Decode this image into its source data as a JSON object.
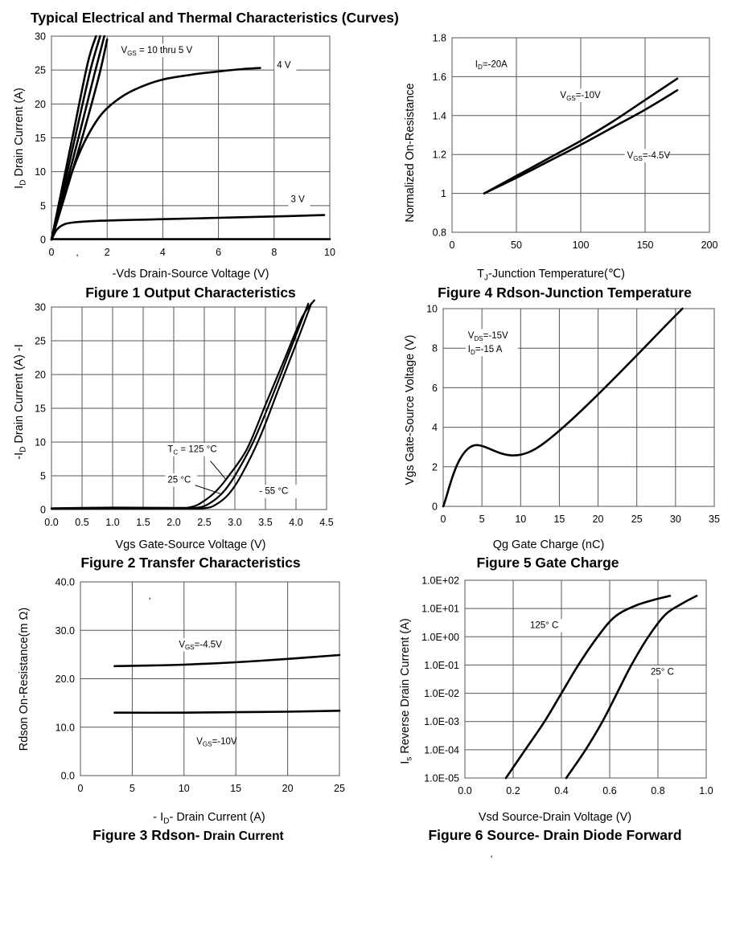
{
  "page": {
    "title": "Typical Electrical and Thermal Characteristics (Curves)",
    "stray_marks": [
      "'",
      "'",
      "'"
    ]
  },
  "chart_data": [
    {
      "id": "fig1",
      "type": "line",
      "caption": "Figure 1 Output Characteristics",
      "xlabel": "-Vds Drain-Source Voltage (V)",
      "ylabel": "I",
      "ylabel_sub": "D",
      "ylabel_text": "Drain Current (A)",
      "xlim": [
        0,
        10
      ],
      "ylim": [
        0,
        30
      ],
      "xticks": [
        0,
        2,
        4,
        6,
        8,
        10
      ],
      "xtick_labels": [
        "0",
        "2",
        "4",
        "6",
        "8",
        "10"
      ],
      "yticks": [
        0,
        5,
        10,
        15,
        20,
        25,
        30
      ],
      "ytick_labels": [
        "0",
        "5",
        "10",
        "15",
        "20",
        "25",
        "30"
      ],
      "grid": true,
      "series": [
        {
          "name": "VGS = 10 thru 5 V (a)",
          "x": [
            0,
            0.3,
            0.8,
            1.3,
            1.6
          ],
          "y": [
            0,
            6,
            16,
            26,
            30
          ]
        },
        {
          "name": "VGS = 10 thru 5 V (b)",
          "x": [
            0,
            0.35,
            0.9,
            1.4,
            1.75
          ],
          "y": [
            0,
            6,
            16,
            25,
            30
          ]
        },
        {
          "name": "VGS = 10 thru 5 V (c)",
          "x": [
            0,
            0.4,
            1.0,
            1.55,
            1.9
          ],
          "y": [
            0,
            6,
            15.5,
            24.5,
            30
          ]
        },
        {
          "name": "VGS = 10 thru 5 V (d)",
          "x": [
            0,
            0.45,
            1.1,
            1.7,
            2.0
          ],
          "y": [
            0,
            6,
            15,
            24,
            29.5
          ]
        },
        {
          "name": "4 V",
          "x": [
            0,
            0.3,
            0.7,
            1.2,
            1.8,
            2.5,
            3.2,
            4,
            5,
            6,
            7,
            7.5
          ],
          "y": [
            0,
            4,
            9.5,
            14.5,
            18.5,
            21,
            22.5,
            23.6,
            24.3,
            24.8,
            25.2,
            25.3
          ]
        },
        {
          "name": "3 V",
          "x": [
            0,
            0.2,
            0.5,
            1,
            2,
            3,
            4,
            6,
            8,
            9.8
          ],
          "y": [
            0,
            1.5,
            2.3,
            2.6,
            2.8,
            2.9,
            3.0,
            3.2,
            3.4,
            3.6
          ]
        },
        {
          "name": "baseline",
          "x": [
            0,
            10
          ],
          "y": [
            0.05,
            0.05
          ]
        }
      ],
      "annotations": [
        {
          "text": "V",
          "sub": "GS",
          "tail": " = 10 thru 5 V",
          "x": 2.5,
          "y": 27.5
        },
        {
          "text": "4 V",
          "x": 8.1,
          "y": 25.3
        },
        {
          "text": "3 V",
          "x": 8.6,
          "y": 5.5
        }
      ]
    },
    {
      "id": "fig2",
      "type": "line",
      "caption": "Figure 2 Transfer Characteristics",
      "xlabel": "Vgs Gate-Source Voltage (V)",
      "ylabel": "-I",
      "ylabel_sub": "D",
      "ylabel_text": "Drain Current (A) -I",
      "xlim": [
        0,
        4.5
      ],
      "ylim": [
        0,
        30
      ],
      "xticks": [
        0,
        0.5,
        1,
        1.5,
        2,
        2.5,
        3,
        3.5,
        4,
        4.5
      ],
      "xtick_labels": [
        "0.0",
        "0.5",
        "1.0",
        "1.5",
        "2.0",
        "2.5",
        "3.0",
        "3.5",
        "4.0",
        "4.5"
      ],
      "yticks": [
        0,
        5,
        10,
        15,
        20,
        25,
        30
      ],
      "ytick_labels": [
        "0",
        "5",
        "10",
        "15",
        "20",
        "25",
        "30"
      ],
      "grid": true,
      "series": [
        {
          "name": "TC = 125 °C",
          "x": [
            0,
            1,
            2,
            2.3,
            2.5,
            2.7,
            2.9,
            3.2,
            3.5,
            3.8,
            4.1,
            4.3
          ],
          "y": [
            0.2,
            0.3,
            0.25,
            0.4,
            1.3,
            2.8,
            5,
            9,
            15.5,
            22,
            28.5,
            31
          ]
        },
        {
          "name": "25 °C",
          "x": [
            0,
            1,
            2,
            2.4,
            2.6,
            2.8,
            3.0,
            3.3,
            3.6,
            3.9,
            4.2
          ],
          "y": [
            0.15,
            0.2,
            0.2,
            0.3,
            1.0,
            2.5,
            5,
            10,
            16.5,
            23.5,
            30.5
          ]
        },
        {
          "name": "- 55 °C",
          "x": [
            0,
            1,
            2,
            2.5,
            2.7,
            2.9,
            3.1,
            3.4,
            3.7,
            4.0,
            4.25
          ],
          "y": [
            0.1,
            0.15,
            0.15,
            0.2,
            0.8,
            2.3,
            5,
            10.5,
            17.5,
            24.5,
            30.5
          ]
        }
      ],
      "annotations": [
        {
          "text": "T",
          "sub": "C",
          "tail": " = 125 °C",
          "x": 1.9,
          "y": 8.5
        },
        {
          "text": "25 °C",
          "x": 1.9,
          "y": 4.0
        },
        {
          "text": "- 55 °C",
          "x": 3.4,
          "y": 2.3
        }
      ]
    },
    {
      "id": "fig3",
      "type": "line",
      "caption": "Figure 3 Rdson- Drain Current",
      "caption_bold": "Figure 3 Rdson-",
      "caption_normal": " Drain Current",
      "xlabel": "- I",
      "xlabel_sub": "D",
      "xlabel_tail": "- Drain Current (A)",
      "ylabel": "Rdson On-Resistance(m Ω)",
      "xlim": [
        0,
        25
      ],
      "ylim": [
        0,
        40
      ],
      "xticks": [
        0,
        5,
        10,
        15,
        20,
        25
      ],
      "xtick_labels": [
        "0",
        "5",
        "10",
        "15",
        "20",
        "25"
      ],
      "yticks": [
        0,
        10,
        20,
        30,
        40
      ],
      "ytick_labels": [
        "0.0",
        "10.0",
        "20.0",
        "30.0",
        "40.0"
      ],
      "grid": true,
      "series": [
        {
          "name": "VGS=-4.5V",
          "x": [
            3.3,
            6,
            10,
            15,
            20,
            25
          ],
          "y": [
            22.6,
            22.7,
            22.9,
            23.4,
            24.1,
            24.9
          ]
        },
        {
          "name": "VGS=-10V",
          "x": [
            3.3,
            10,
            15,
            20,
            25
          ],
          "y": [
            13.0,
            13.0,
            13.1,
            13.2,
            13.4
          ]
        }
      ],
      "annotations": [
        {
          "text": "V",
          "sub": "GS",
          "tail": "=-4.5V",
          "x": 9.5,
          "y": 26.5
        },
        {
          "text": "V",
          "sub": "GS",
          "tail": "=-10V",
          "x": 11.2,
          "y": 6.5
        }
      ]
    },
    {
      "id": "fig4",
      "type": "line",
      "caption": "Figure 4 Rdson-Junction Temperature",
      "xlabel": "T",
      "xlabel_sub": "J",
      "xlabel_tail": "-Junction Temperature(℃)",
      "ylabel": "Normalized On-Resistance",
      "xlim": [
        0,
        200
      ],
      "ylim": [
        0.8,
        1.8
      ],
      "xticks": [
        0,
        50,
        100,
        150,
        200
      ],
      "xtick_labels": [
        "0",
        "50",
        "100",
        "150",
        "200"
      ],
      "yticks": [
        0.8,
        1.0,
        1.2,
        1.4,
        1.6,
        1.8
      ],
      "ytick_labels": [
        "0.8",
        "1",
        "1.2",
        "1.4",
        "1.6",
        "1.8"
      ],
      "grid": true,
      "series": [
        {
          "name": "VGS=-10V",
          "x": [
            25,
            50,
            75,
            100,
            125,
            150,
            175
          ],
          "y": [
            1.0,
            1.09,
            1.18,
            1.27,
            1.37,
            1.48,
            1.59
          ]
        },
        {
          "name": "VGS=-4.5V",
          "x": [
            25,
            50,
            75,
            100,
            125,
            150,
            175
          ],
          "y": [
            1.0,
            1.08,
            1.165,
            1.25,
            1.34,
            1.43,
            1.53
          ]
        }
      ],
      "annotations": [
        {
          "text": "I",
          "sub": "D",
          "tail": "=-20A",
          "x": 18,
          "y": 1.65
        },
        {
          "text": "V",
          "sub": "GS",
          "tail": "=-10V",
          "x": 84,
          "y": 1.49
        },
        {
          "text": "V",
          "sub": "GS",
          "tail": "=-4.5V",
          "x": 136,
          "y": 1.18
        }
      ]
    },
    {
      "id": "fig5",
      "type": "line",
      "caption": "Figure 5 Gate Charge",
      "xlabel": "Qg Gate Charge (nC)",
      "ylabel": "Vgs Gate-Source Voltage (V)",
      "xlim": [
        0,
        35
      ],
      "ylim": [
        0,
        10
      ],
      "xticks": [
        0,
        5,
        10,
        15,
        20,
        25,
        30,
        35
      ],
      "xtick_labels": [
        "0",
        "5",
        "10",
        "15",
        "20",
        "25",
        "30",
        "35"
      ],
      "yticks": [
        0,
        2,
        4,
        6,
        8,
        10
      ],
      "ytick_labels": [
        "0",
        "2",
        "4",
        "6",
        "8",
        "10"
      ],
      "grid": true,
      "series": [
        {
          "name": "Vgs",
          "x": [
            0,
            3.5,
            12.3,
            30.9
          ],
          "y": [
            0,
            3.0,
            3.0,
            10.0
          ]
        }
      ],
      "annotations": [
        {
          "text": "V",
          "sub": "DS",
          "tail": "=-15V",
          "x": 3.2,
          "y": 8.5
        },
        {
          "text": "I",
          "sub": "D",
          "tail": "=-15   A",
          "x": 3.2,
          "y": 7.8
        }
      ]
    },
    {
      "id": "fig6",
      "type": "line",
      "caption": "Figure 6 Source- Drain Diode Forward",
      "xlabel": "Vsd Source-Drain Voltage (V)",
      "ylabel": "I",
      "ylabel_sub": "s",
      "ylabel_text": "Reverse Drain Current (A)",
      "yscale": "log",
      "xlim": [
        0,
        1.0
      ],
      "ylim": [
        1e-05,
        100
      ],
      "xticks": [
        0,
        0.2,
        0.4,
        0.6,
        0.8,
        1.0
      ],
      "xtick_labels": [
        "0.0",
        "0.2",
        "0.4",
        "0.6",
        "0.8",
        "1.0"
      ],
      "yticks": [
        1e-05,
        0.0001,
        0.001,
        0.01,
        0.1,
        1,
        10,
        100
      ],
      "ytick_labels": [
        "1.0E-05",
        "1.0E-04",
        "1.0E-03",
        "1.0E-02",
        "1.0E-01",
        "1.0E+00",
        "1.0E+01",
        "1.0E+02"
      ],
      "grid": true,
      "series": [
        {
          "name": "125° C",
          "x": [
            0.17,
            0.25,
            0.33,
            0.4,
            0.47,
            0.55,
            0.62,
            0.7,
            0.78,
            0.85
          ],
          "y": [
            1e-05,
            0.0001,
            0.001,
            0.01,
            0.1,
            1,
            5,
            12,
            20,
            28
          ]
        },
        {
          "name": "25° C",
          "x": [
            0.42,
            0.5,
            0.57,
            0.63,
            0.69,
            0.76,
            0.83,
            0.9,
            0.96
          ],
          "y": [
            1e-05,
            0.0001,
            0.001,
            0.01,
            0.1,
            1,
            6,
            15,
            28
          ]
        }
      ],
      "annotations": [
        {
          "text": "125°  C",
          "x": 0.27,
          "y": 2
        },
        {
          "text": "25°  C",
          "x": 0.77,
          "y": 0.045
        }
      ]
    }
  ]
}
